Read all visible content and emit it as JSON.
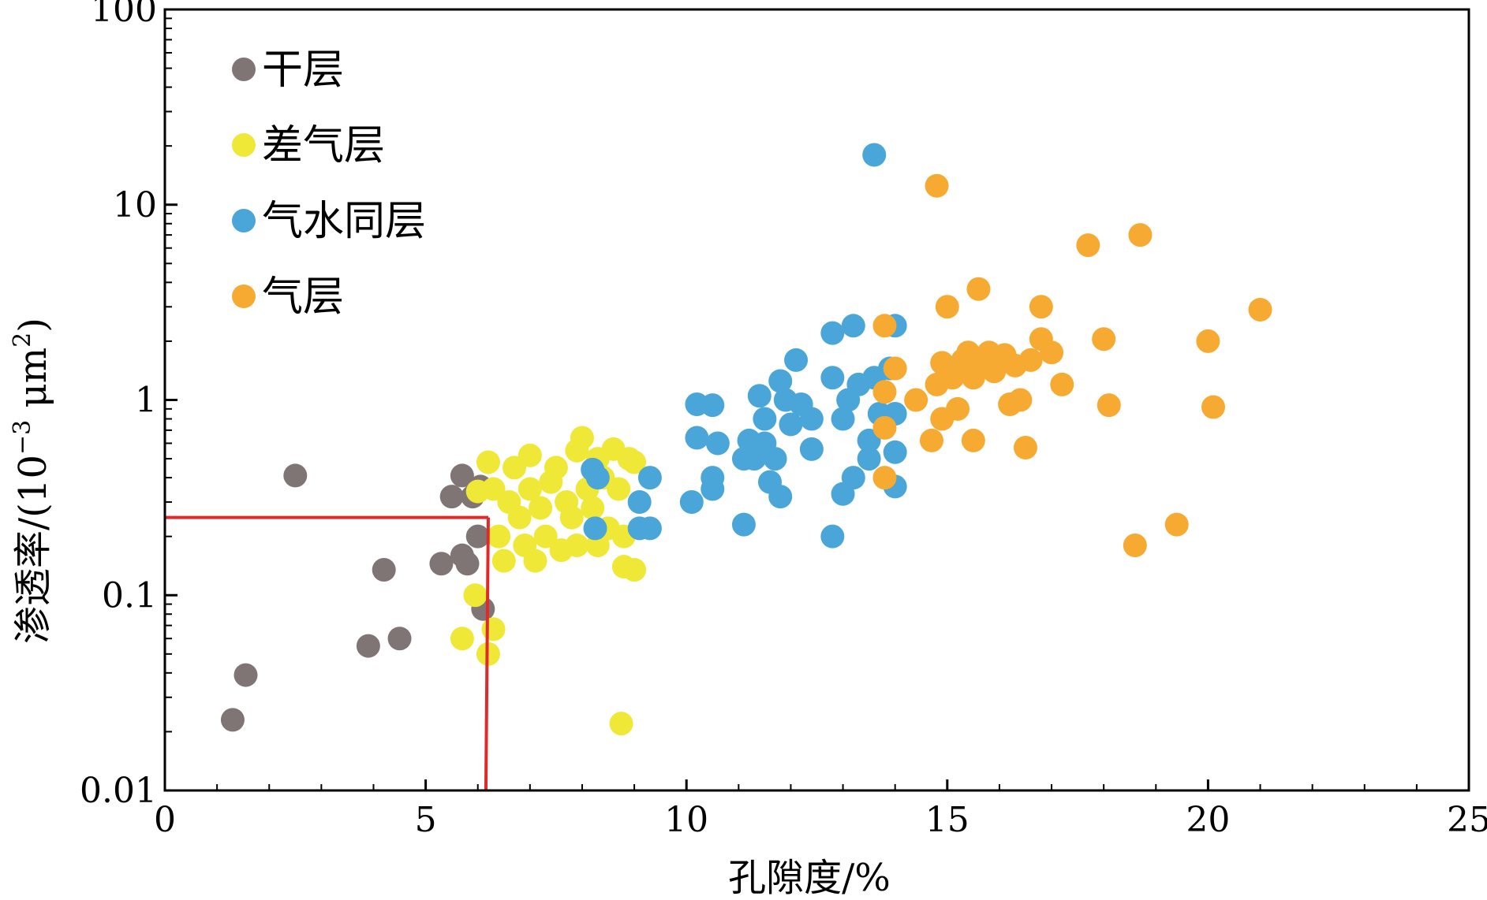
{
  "chart_data": {
    "type": "scatter",
    "title": "",
    "xlabel": "孔隙度/%",
    "ylabel_main": "渗透率/(10",
    "ylabel_sup1": "−3",
    "ylabel_mid": " μm",
    "ylabel_sup2": "2",
    "ylabel_end": ")",
    "xlim": [
      0,
      25
    ],
    "ylim": [
      0.01,
      100
    ],
    "yscale": "log",
    "x_ticks": [
      0,
      5,
      10,
      15,
      20,
      25
    ],
    "x_tick_labels": [
      "0",
      "5",
      "10",
      "15",
      "20",
      "25"
    ],
    "y_ticks": [
      0.01,
      0.1,
      1,
      10,
      100
    ],
    "y_tick_labels": [
      "0.01",
      "0.1",
      "1",
      "10",
      "100"
    ],
    "grid": false,
    "legend_position": "top-left",
    "cutoff_line": {
      "x": 6.2,
      "y": 0.25,
      "color": "#e02a2a"
    },
    "series": [
      {
        "name": "干层",
        "color": "#7f7574",
        "points": [
          [
            1.3,
            0.023
          ],
          [
            1.55,
            0.039
          ],
          [
            2.5,
            0.41
          ],
          [
            3.9,
            0.055
          ],
          [
            4.2,
            0.135
          ],
          [
            4.5,
            0.06
          ],
          [
            5.3,
            0.145
          ],
          [
            5.5,
            0.32
          ],
          [
            5.7,
            0.41
          ],
          [
            5.7,
            0.16
          ],
          [
            5.8,
            0.145
          ],
          [
            5.9,
            0.32
          ],
          [
            6.0,
            0.2
          ],
          [
            6.1,
            0.085
          ],
          [
            6.05,
            0.36
          ]
        ]
      },
      {
        "name": "差气层",
        "color": "#f0e836",
        "points": [
          [
            5.7,
            0.06
          ],
          [
            5.95,
            0.1
          ],
          [
            6.2,
            0.05
          ],
          [
            6.3,
            0.067
          ],
          [
            6.0,
            0.34
          ],
          [
            6.2,
            0.48
          ],
          [
            6.3,
            0.35
          ],
          [
            6.4,
            0.2
          ],
          [
            6.5,
            0.15
          ],
          [
            6.6,
            0.3
          ],
          [
            6.7,
            0.45
          ],
          [
            6.8,
            0.25
          ],
          [
            6.9,
            0.18
          ],
          [
            7.0,
            0.35
          ],
          [
            7.0,
            0.52
          ],
          [
            7.1,
            0.15
          ],
          [
            7.2,
            0.28
          ],
          [
            7.3,
            0.2
          ],
          [
            7.4,
            0.38
          ],
          [
            7.5,
            0.45
          ],
          [
            7.6,
            0.17
          ],
          [
            7.7,
            0.3
          ],
          [
            7.8,
            0.25
          ],
          [
            7.9,
            0.55
          ],
          [
            7.9,
            0.18
          ],
          [
            8.0,
            0.64
          ],
          [
            8.1,
            0.35
          ],
          [
            8.2,
            0.28
          ],
          [
            8.3,
            0.5
          ],
          [
            8.4,
            0.4
          ],
          [
            8.5,
            0.22
          ],
          [
            8.6,
            0.56
          ],
          [
            8.7,
            0.35
          ],
          [
            8.8,
            0.2
          ],
          [
            8.9,
            0.5
          ],
          [
            9.0,
            0.48
          ],
          [
            8.8,
            0.14
          ],
          [
            9.0,
            0.135
          ],
          [
            8.75,
            0.022
          ],
          [
            8.3,
            0.18
          ]
        ]
      },
      {
        "name": "气水同层",
        "color": "#4aa6d8",
        "points": [
          [
            8.2,
            0.44
          ],
          [
            8.3,
            0.4
          ],
          [
            8.25,
            0.22
          ],
          [
            9.1,
            0.3
          ],
          [
            9.1,
            0.22
          ],
          [
            9.3,
            0.22
          ],
          [
            9.3,
            0.4
          ],
          [
            10.1,
            0.3
          ],
          [
            10.2,
            0.95
          ],
          [
            10.2,
            0.64
          ],
          [
            10.5,
            0.94
          ],
          [
            10.5,
            0.4
          ],
          [
            10.5,
            0.35
          ],
          [
            10.6,
            0.6
          ],
          [
            11.1,
            0.23
          ],
          [
            11.1,
            0.5
          ],
          [
            11.2,
            0.62
          ],
          [
            11.3,
            0.5
          ],
          [
            11.4,
            1.05
          ],
          [
            11.5,
            0.8
          ],
          [
            11.5,
            0.6
          ],
          [
            11.6,
            0.38
          ],
          [
            11.7,
            0.5
          ],
          [
            11.8,
            1.25
          ],
          [
            11.8,
            0.32
          ],
          [
            11.9,
            1.0
          ],
          [
            12.0,
            0.75
          ],
          [
            12.1,
            1.6
          ],
          [
            12.2,
            0.95
          ],
          [
            12.4,
            0.8
          ],
          [
            12.4,
            0.56
          ],
          [
            12.8,
            2.2
          ],
          [
            12.8,
            1.3
          ],
          [
            12.8,
            0.2
          ],
          [
            13.0,
            0.8
          ],
          [
            13.0,
            0.33
          ],
          [
            13.1,
            1.0
          ],
          [
            13.2,
            2.4
          ],
          [
            13.3,
            1.2
          ],
          [
            13.5,
            0.62
          ],
          [
            13.5,
            0.5
          ],
          [
            13.6,
            1.3
          ],
          [
            13.7,
            0.85
          ],
          [
            13.9,
            1.45
          ],
          [
            14.0,
            2.4
          ],
          [
            14.0,
            0.85
          ],
          [
            14.0,
            0.54
          ],
          [
            14.0,
            0.36
          ],
          [
            13.6,
            18.0
          ],
          [
            13.2,
            0.4
          ]
        ]
      },
      {
        "name": "气层",
        "color": "#f7aa31",
        "points": [
          [
            13.8,
            2.4
          ],
          [
            13.8,
            1.1
          ],
          [
            13.8,
            0.72
          ],
          [
            13.8,
            0.4
          ],
          [
            14.0,
            1.45
          ],
          [
            14.4,
            1.0
          ],
          [
            14.7,
            0.62
          ],
          [
            14.8,
            12.5
          ],
          [
            14.8,
            1.2
          ],
          [
            14.9,
            1.55
          ],
          [
            14.9,
            0.8
          ],
          [
            15.0,
            3.0
          ],
          [
            15.1,
            1.3
          ],
          [
            15.2,
            0.9
          ],
          [
            15.3,
            1.6
          ],
          [
            15.4,
            1.75
          ],
          [
            15.5,
            1.3
          ],
          [
            15.5,
            0.62
          ],
          [
            15.6,
            3.7
          ],
          [
            15.7,
            1.6
          ],
          [
            15.8,
            1.75
          ],
          [
            15.9,
            1.4
          ],
          [
            16.0,
            1.55
          ],
          [
            16.1,
            1.7
          ],
          [
            16.2,
            0.95
          ],
          [
            16.3,
            1.5
          ],
          [
            16.4,
            1.0
          ],
          [
            16.5,
            0.57
          ],
          [
            16.6,
            1.6
          ],
          [
            16.8,
            3.0
          ],
          [
            16.8,
            2.05
          ],
          [
            17.0,
            1.75
          ],
          [
            17.2,
            1.2
          ],
          [
            17.7,
            6.2
          ],
          [
            18.0,
            2.05
          ],
          [
            18.1,
            0.94
          ],
          [
            18.6,
            0.18
          ],
          [
            18.7,
            7.0
          ],
          [
            19.4,
            0.23
          ],
          [
            20.0,
            2.0
          ],
          [
            20.1,
            0.92
          ],
          [
            21.0,
            2.9
          ]
        ]
      }
    ]
  }
}
